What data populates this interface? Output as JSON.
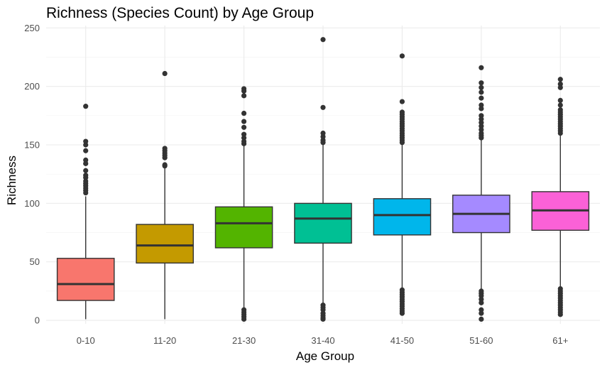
{
  "chart_data": {
    "type": "boxplot",
    "title": "Richness (Species Count) by Age Group",
    "xlabel": "Age Group",
    "ylabel": "Richness",
    "ylim": [
      -3,
      252
    ],
    "yticks": [
      0,
      50,
      100,
      150,
      200,
      250
    ],
    "grid": true,
    "legend": "none",
    "categories": [
      "0-10",
      "11-20",
      "21-30",
      "31-40",
      "41-50",
      "51-60",
      "61+"
    ],
    "colors": [
      "#F8766D",
      "#C49A00",
      "#53B400",
      "#00C094",
      "#00B6EB",
      "#A58AFF",
      "#FB61D7"
    ],
    "boxes": [
      {
        "category": "0-10",
        "min": 1,
        "q1": 17,
        "median": 31,
        "q3": 53,
        "max": 106,
        "outliers": [
          183,
          153,
          150,
          145,
          137,
          134,
          128,
          124,
          122,
          119,
          117,
          115,
          113,
          111,
          109
        ]
      },
      {
        "category": "11-20",
        "min": 1,
        "q1": 49,
        "median": 64,
        "q3": 82,
        "max": 131,
        "outliers": [
          211,
          147,
          145,
          143,
          141,
          139,
          133,
          132
        ]
      },
      {
        "category": "21-30",
        "min": 10,
        "q1": 62,
        "median": 83,
        "q3": 97,
        "max": 149,
        "outliers": [
          198,
          196,
          192,
          177,
          170,
          165,
          159,
          156,
          153,
          151,
          9,
          7,
          5,
          3,
          1
        ]
      },
      {
        "category": "31-40",
        "min": 14,
        "q1": 66,
        "median": 87,
        "q3": 100,
        "max": 150,
        "outliers": [
          240,
          182,
          160,
          157,
          154,
          152,
          13,
          11,
          9,
          6,
          4,
          2,
          1
        ]
      },
      {
        "category": "41-50",
        "min": 27,
        "q1": 73,
        "median": 90,
        "q3": 104,
        "max": 150,
        "outliers": [
          226,
          187,
          178,
          176,
          174,
          172,
          170,
          168,
          166,
          164,
          162,
          160,
          158,
          156,
          154,
          152,
          26,
          24,
          22,
          20,
          18,
          16,
          14,
          12,
          10,
          8,
          6
        ]
      },
      {
        "category": "51-60",
        "min": 26,
        "q1": 75,
        "median": 91,
        "q3": 107,
        "max": 155,
        "outliers": [
          216,
          203,
          199,
          195,
          190,
          184,
          181,
          175,
          172,
          169,
          166,
          163,
          160,
          158,
          156,
          25,
          23,
          21,
          18,
          15,
          9,
          6,
          1
        ]
      },
      {
        "category": "61+",
        "min": 28,
        "q1": 77,
        "median": 94,
        "q3": 110,
        "max": 158,
        "outliers": [
          206,
          202,
          199,
          188,
          184,
          180,
          178,
          176,
          174,
          172,
          170,
          168,
          166,
          164,
          162,
          160,
          27,
          25,
          23,
          21,
          19,
          17,
          15,
          13,
          11,
          9,
          7,
          5
        ]
      }
    ]
  }
}
